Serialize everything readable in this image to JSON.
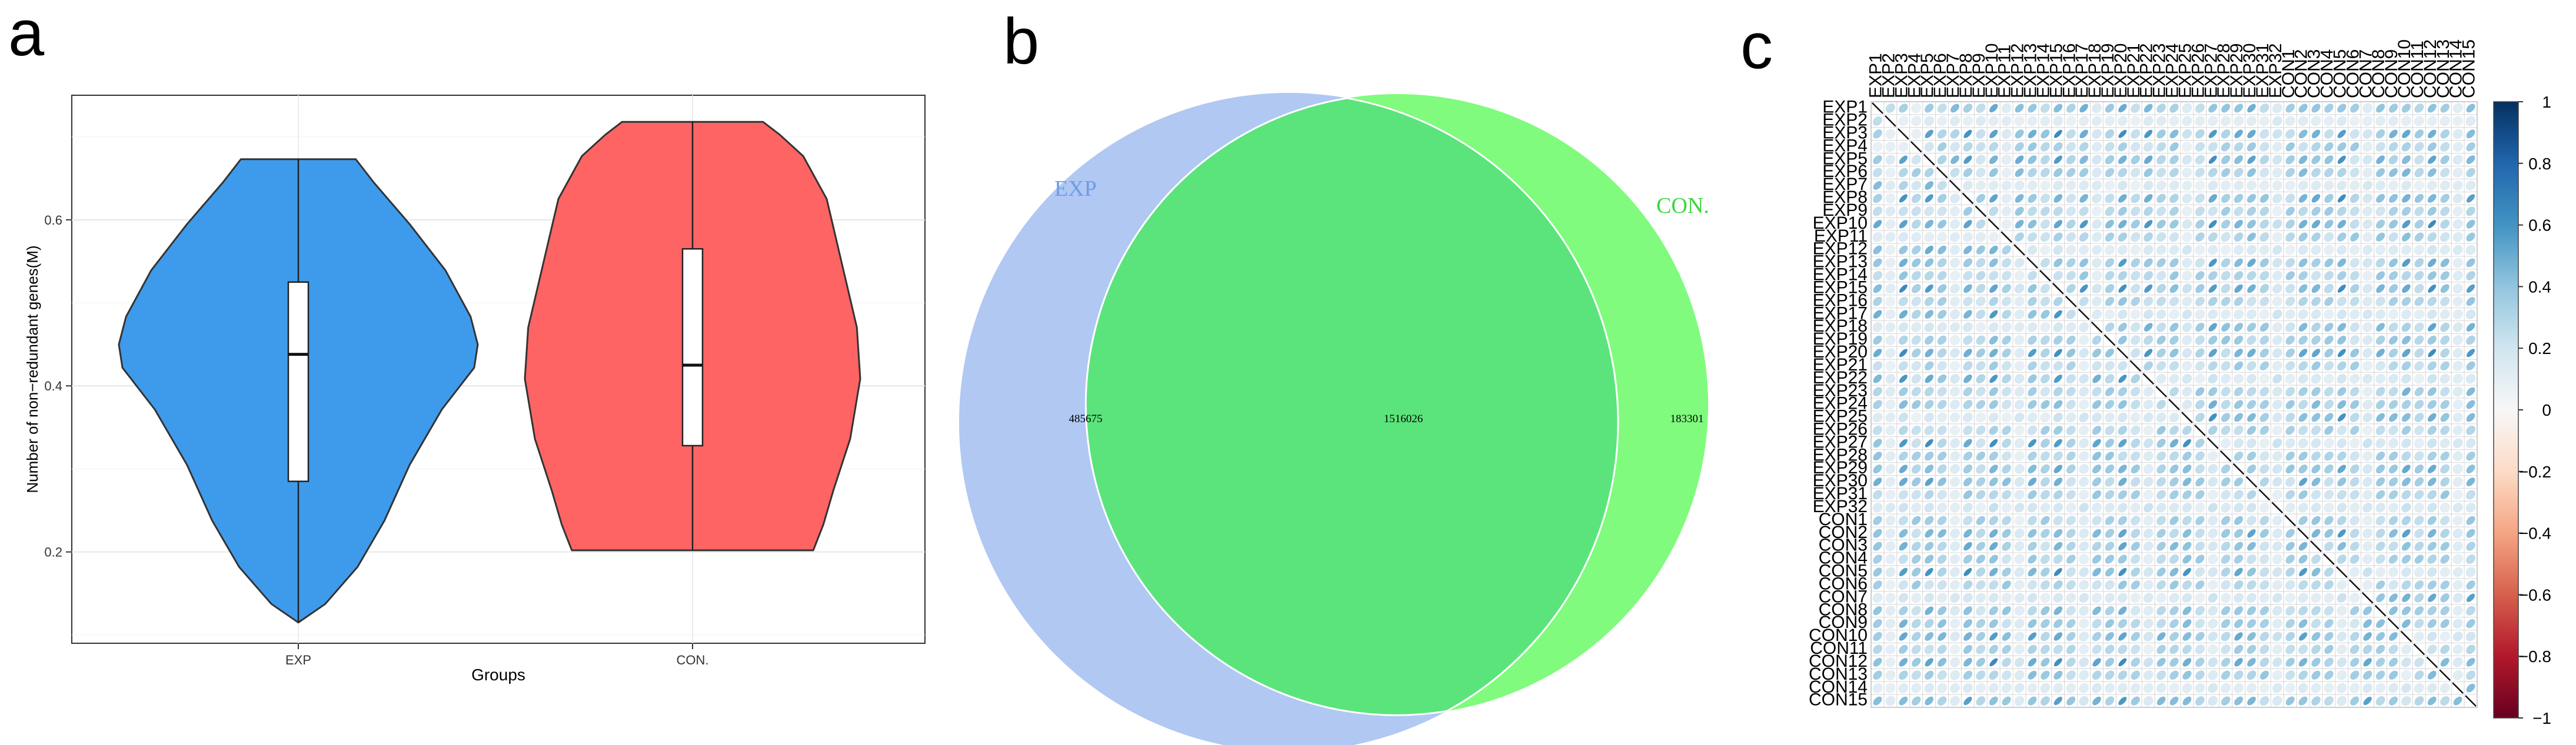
{
  "panel_labels": [
    "a",
    "b",
    "c"
  ],
  "chart_data": [
    {
      "type": "violin",
      "title": "",
      "xlabel": "Groups",
      "ylabel": "Number of non−redundant genes(M)",
      "categories": [
        "EXP",
        "CON."
      ],
      "ylim": [
        0.09,
        0.75
      ],
      "yticks": [
        0.2,
        0.4,
        0.6
      ],
      "ytick_labels": [
        "0.2",
        "0.4",
        "0.6"
      ],
      "grid": true,
      "series": [
        {
          "name": "EXP",
          "color": "#4C9BE8",
          "fill": "#3E9BEC",
          "min": 0.115,
          "q1": 0.285,
          "median": 0.438,
          "q3": 0.525,
          "max": 0.673
        },
        {
          "name": "CON.",
          "color": "#FF6666",
          "fill": "#FF6464",
          "min": 0.202,
          "q1": 0.328,
          "median": 0.425,
          "q3": 0.565,
          "max": 0.718
        }
      ]
    },
    {
      "type": "venn",
      "sets": [
        {
          "name": "EXP",
          "color": "#B0C8F2",
          "label_color": "#6E9CE8"
        },
        {
          "name": "CON.",
          "color": "#80FB7E",
          "label_color": "#3CD63C"
        }
      ],
      "overlap_color": "#5BE47B",
      "values": {
        "EXP_only": "485675",
        "both": "1516026",
        "CON_only": "183301"
      }
    },
    {
      "type": "heatmap",
      "subtype": "correlation matrix (ellipse glyphs)",
      "labels": [
        "EXP1",
        "EXP2",
        "EXP3",
        "EXP4",
        "EXP5",
        "EXP6",
        "EXP7",
        "EXP8",
        "EXP9",
        "EXP10",
        "EXP11",
        "EXP12",
        "EXP13",
        "EXP14",
        "EXP15",
        "EXP16",
        "EXP17",
        "EXP18",
        "EXP19",
        "EXP20",
        "EXP21",
        "EXP22",
        "EXP23",
        "EXP24",
        "EXP25",
        "EXP26",
        "EXP27",
        "EXP28",
        "EXP29",
        "EXP30",
        "EXP31",
        "EXP32",
        "CON1",
        "CON2",
        "CON3",
        "CON4",
        "CON5",
        "CON6",
        "CON7",
        "CON8",
        "CON9",
        "CON10",
        "CON11",
        "CON12",
        "CON13",
        "CON14",
        "CON15"
      ],
      "colorbar": {
        "ticks": [
          "1",
          "0.8",
          "0.6",
          "0.4",
          "0.2",
          "0",
          "−0.2",
          "−0.4",
          "−0.6",
          "−0.8",
          "−1"
        ],
        "colors": [
          "#053061",
          "#2166AC",
          "#4393C3",
          "#92C5DE",
          "#D1E5F0",
          "#F7F7F7",
          "#FDDBC7",
          "#F4A582",
          "#D6604D",
          "#B2182B",
          "#67001F"
        ],
        "range": [
          -1,
          1
        ]
      }
    }
  ]
}
